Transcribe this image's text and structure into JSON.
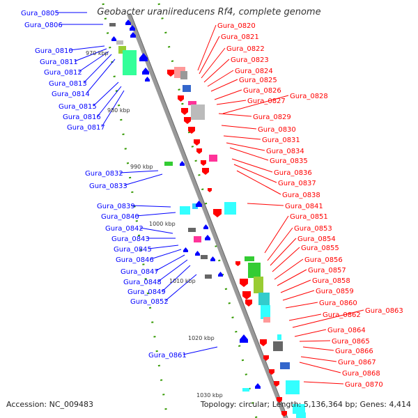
{
  "title": "Geobacter uraniireducens Rf4, complete genome",
  "accession": "Accession: NC_009483",
  "topology": "Topology: circular; Length: 5,136,364 bp; Genes: 4,414",
  "colors": {
    "forward": "#ff0000",
    "reverse": "#0000ff",
    "backbone": "#999999",
    "tick": "#339900",
    "cyan": "#33ffff",
    "green": "#33cc33",
    "pink": "#ff3399",
    "gray": "#666666",
    "blue": "#3366cc",
    "mint": "#33ff99",
    "salmon": "#ff9999",
    "lightgray": "#bbbbbb"
  },
  "scale_labels": [
    "970 kbp",
    "980 kbp",
    "990 kbp",
    "1000 kbp",
    "1010 kbp",
    "1020 kbp",
    "1030 kbp"
  ],
  "left_genes": [
    "Gura_0805",
    "Gura_0806",
    "Gura_0810",
    "Gura_0811",
    "Gura_0812",
    "Gura_0813",
    "Gura_0814",
    "Gura_0815",
    "Gura_0816",
    "Gura_0817",
    "Gura_0832",
    "Gura_0833",
    "Gura_0839",
    "Gura_0840",
    "Gura_0842",
    "Gura_0843",
    "Gura_0845",
    "Gura_0846",
    "Gura_0847",
    "Gura_0848",
    "Gura_0849",
    "Gura_0852",
    "Gura_0861"
  ],
  "right_genes": [
    "Gura_0820",
    "Gura_0821",
    "Gura_0822",
    "Gura_0823",
    "Gura_0824",
    "Gura_0825",
    "Gura_0826",
    "Gura_0827",
    "Gura_0828",
    "Gura_0829",
    "Gura_0830",
    "Gura_0831",
    "Gura_0834",
    "Gura_0835",
    "Gura_0836",
    "Gura_0837",
    "Gura_0838",
    "Gura_0841",
    "Gura_0851",
    "Gura_0853",
    "Gura_0854",
    "Gura_0855",
    "Gura_0856",
    "Gura_0857",
    "Gura_0858",
    "Gura_0859",
    "Gura_0860",
    "Gura_0863",
    "Gura_0862",
    "Gura_0864",
    "Gura_0865",
    "Gura_0866",
    "Gura_0867",
    "Gura_0868",
    "Gura_0870"
  ]
}
